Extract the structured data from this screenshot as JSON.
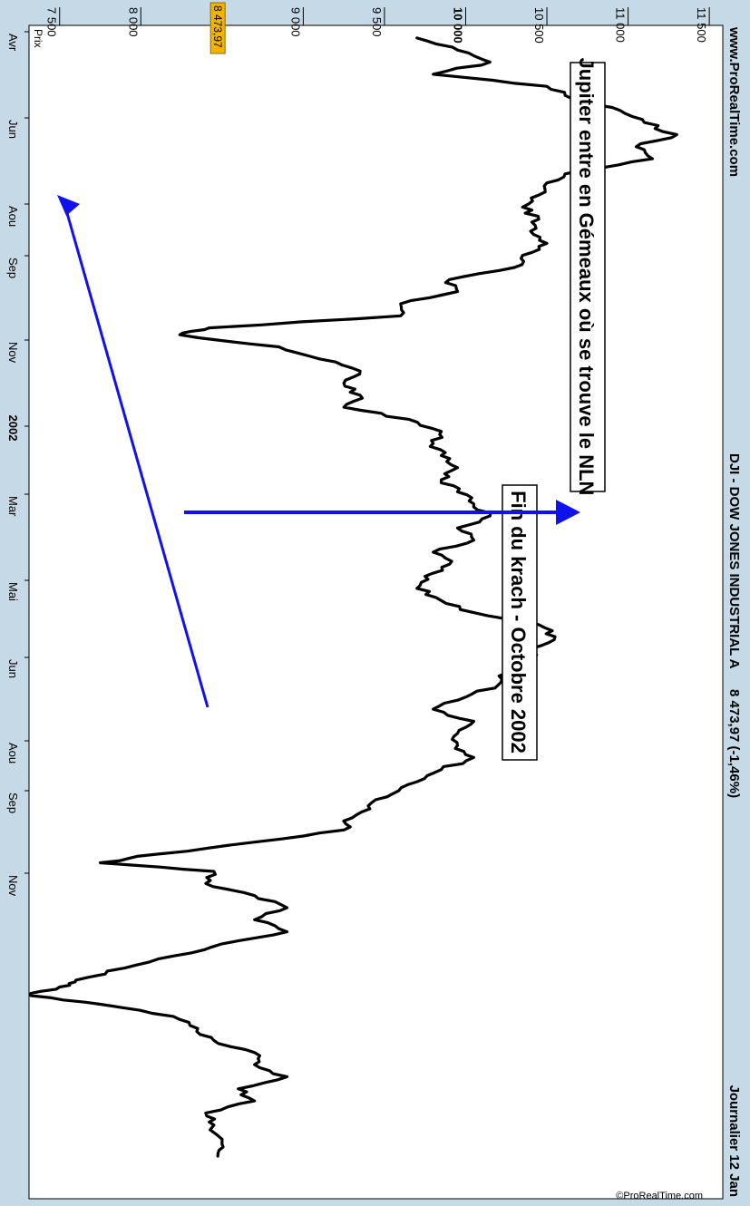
{
  "header": {
    "site": "www.ProRealTime.com",
    "instrument": "DJI - DOW JONES INDUSTRIAL A",
    "quote": "8 473,97 (-1,46%)",
    "period": "Journalier  12 Jan"
  },
  "panel_label": "Prix",
  "watermark": "©ProRealTime.com",
  "colors": {
    "background": "#c6d9e6",
    "plot_background": "#ffffff",
    "line": "#000000",
    "arrow": "#1111ee",
    "last_price_badge": "#f2b400"
  },
  "annotations": {
    "jupiter": "Jupiter entre en Gémeaux où se trouve le NLN",
    "krach": "Fin du krach - Octobre 2002"
  },
  "chart_data": {
    "type": "line",
    "title": "DJI - DOW JONES INDUSTRIAL A",
    "xlabel": "",
    "ylabel": "",
    "ylim": [
      7200,
      11650
    ],
    "grid": false,
    "y_axis_side": "right",
    "y_ticks": [
      {
        "value": 11500,
        "label": "11 500",
        "bold": false
      },
      {
        "value": 11000,
        "label": "11 000",
        "bold": false
      },
      {
        "value": 10500,
        "label": "10 500",
        "bold": false
      },
      {
        "value": 10000,
        "label": "10 000",
        "bold": true
      },
      {
        "value": 9500,
        "label": "9 500",
        "bold": false
      },
      {
        "value": 9000,
        "label": "9 000",
        "bold": false
      },
      {
        "value": 8000,
        "label": "8 000",
        "bold": false
      },
      {
        "value": 7500,
        "label": "7 500",
        "bold": false
      }
    ],
    "x_ticks": [
      {
        "label": "Avr",
        "bold": false
      },
      {
        "label": "Jun",
        "bold": false
      },
      {
        "label": "Aou",
        "bold": false
      },
      {
        "label": "Sep",
        "bold": false
      },
      {
        "label": "Nov",
        "bold": false
      },
      {
        "label": "2002",
        "bold": true
      },
      {
        "label": "Mar",
        "bold": false
      },
      {
        "label": "Mai",
        "bold": false
      },
      {
        "label": "Jun",
        "bold": false
      },
      {
        "label": "Aou",
        "bold": false
      },
      {
        "label": "Sep",
        "bold": false
      },
      {
        "label": "Nov",
        "bold": false
      }
    ],
    "last_value": 8473.97,
    "last_label": "8 473,97",
    "series": [
      {
        "x": [
          "2001-04-02",
          "2001-04-09",
          "2001-04-16",
          "2001-04-23",
          "2001-04-30",
          "2001-05-07",
          "2001-05-14",
          "2001-05-21",
          "2001-05-28",
          "2001-06-04",
          "2001-06-11",
          "2001-06-18",
          "2001-06-25",
          "2001-07-02",
          "2001-07-09",
          "2001-07-16",
          "2001-07-23",
          "2001-07-30",
          "2001-08-06",
          "2001-08-13",
          "2001-08-20",
          "2001-08-27",
          "2001-09-03",
          "2001-09-10",
          "2001-09-17",
          "2001-09-21",
          "2001-09-28",
          "2001-10-05",
          "2001-10-12",
          "2001-10-19",
          "2001-10-26",
          "2001-11-02",
          "2001-11-09",
          "2001-11-16",
          "2001-11-23",
          "2001-11-30",
          "2001-12-07",
          "2001-12-14",
          "2001-12-21",
          "2001-12-28",
          "2002-01-04",
          "2002-01-11",
          "2002-01-18",
          "2002-01-25",
          "2002-02-01",
          "2002-02-08",
          "2002-02-15",
          "2002-02-22",
          "2002-03-01",
          "2002-03-08",
          "2002-03-15",
          "2002-03-22",
          "2002-03-29",
          "2002-04-05",
          "2002-04-12",
          "2002-04-19",
          "2002-04-26",
          "2002-05-03",
          "2002-05-10",
          "2002-05-17",
          "2002-05-24",
          "2002-05-31",
          "2002-06-07",
          "2002-06-14",
          "2002-06-21",
          "2002-06-28",
          "2002-07-05",
          "2002-07-12",
          "2002-07-19",
          "2002-07-24",
          "2002-07-29",
          "2002-08-05",
          "2002-08-12",
          "2002-08-19",
          "2002-08-26",
          "2002-09-02",
          "2002-09-09",
          "2002-09-16",
          "2002-09-23",
          "2002-09-30",
          "2002-10-04",
          "2002-10-09",
          "2002-10-14",
          "2002-10-21",
          "2002-10-28",
          "2002-11-04",
          "2002-11-11",
          "2002-11-18",
          "2002-11-25",
          "2002-12-02",
          "2002-12-09",
          "2002-12-16",
          "2002-12-23",
          "2003-01-03",
          "2003-01-10"
        ],
        "values": [
          9700,
          9950,
          10150,
          9800,
          10500,
          10650,
          10950,
          11100,
          11300,
          11050,
          11150,
          10700,
          10500,
          10450,
          10350,
          10450,
          10400,
          10500,
          10350,
          10300,
          9900,
          9950,
          9600,
          9600,
          8420,
          8240,
          8850,
          9100,
          9350,
          9250,
          9350,
          9250,
          9650,
          9850,
          9800,
          9850,
          9950,
          9850,
          9950,
          10050,
          10150,
          9950,
          10050,
          9800,
          9900,
          9750,
          9700,
          9850,
          10050,
          10450,
          10550,
          10400,
          10400,
          10250,
          10200,
          10000,
          9800,
          10050,
          9950,
          9950,
          10050,
          9850,
          9700,
          9550,
          9400,
          9300,
          9250,
          8700,
          8100,
          7750,
          8450,
          8400,
          8700,
          8900,
          8700,
          8900,
          8500,
          8200,
          7900,
          7600,
          7500,
          7300,
          7750,
          8200,
          8350,
          8450,
          8700,
          8700,
          8900,
          8600,
          8700,
          8400,
          8450,
          8500,
          8474
        ]
      }
    ]
  }
}
